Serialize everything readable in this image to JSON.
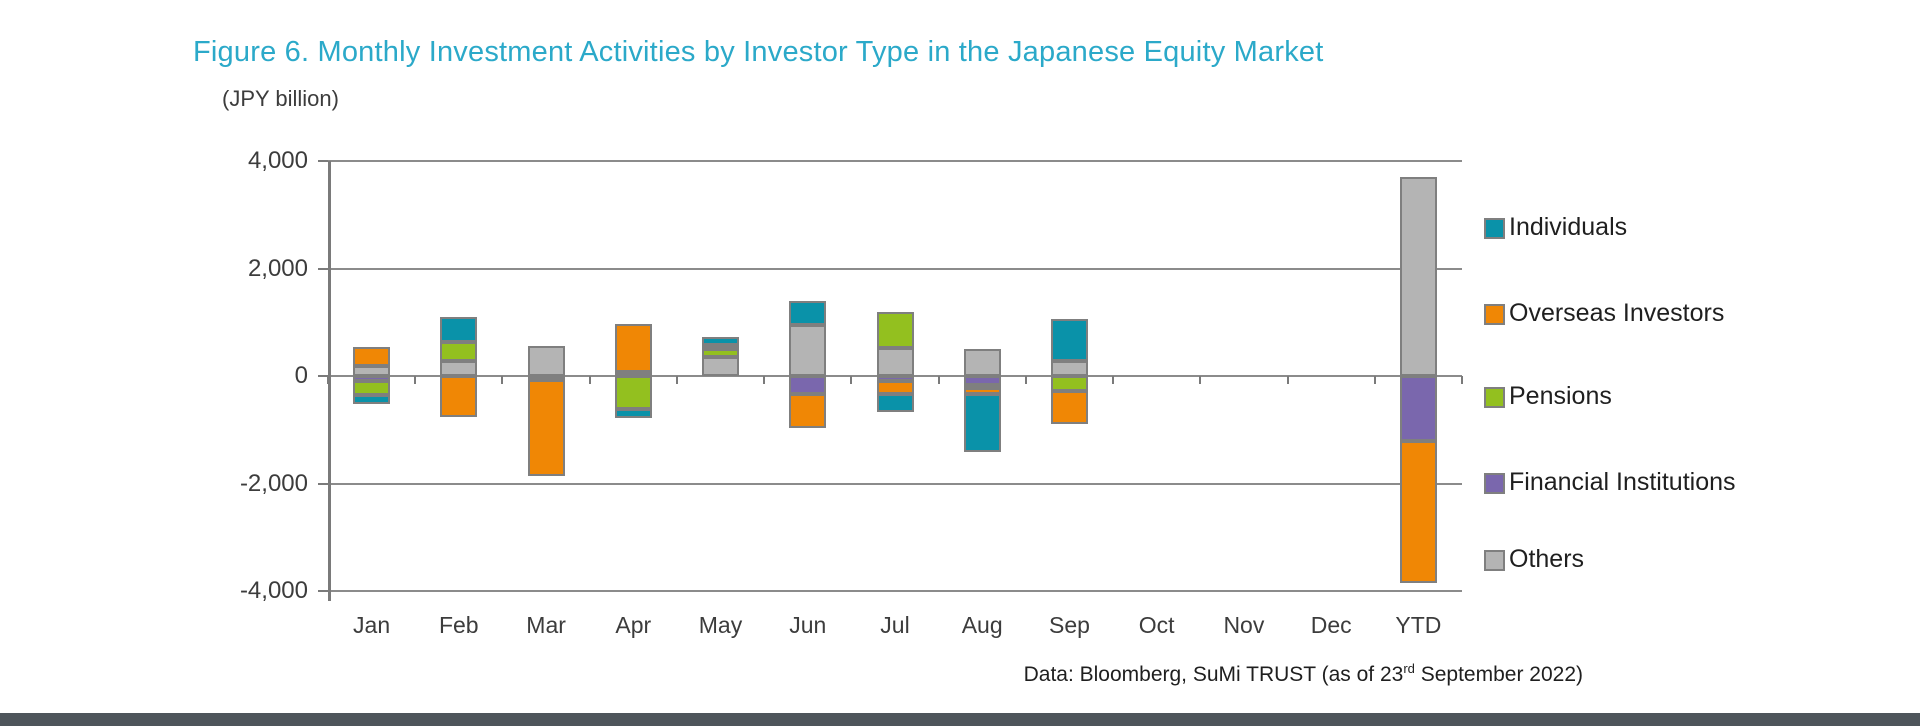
{
  "figure": {
    "title": "Figure 6. Monthly Investment Activities by Investor Type in the Japanese Equity Market",
    "unit_label": "(JPY billion)",
    "source": {
      "prefix": "Data: Bloomberg, SuMi TRUST (as of 23",
      "superscript": "rd",
      "suffix": " September 2022)"
    }
  },
  "colors": {
    "title": "#2BA9C9",
    "axis_text": "#3C3C3C",
    "legend_text": "#1F1F1F",
    "source_text": "#1F1F1F",
    "grid": "#8B8B8B",
    "axis_line": "#7A7A7A",
    "bar_border": "#7F7F7F",
    "individuals": "#0A92A9",
    "overseas_investors": "#F08705",
    "pensions": "#93C01F",
    "financial_institutions": "#7A67AD",
    "others": "#B4B4B4",
    "page_bottom_strip": "#4E555B"
  },
  "chart_data": {
    "type": "bar",
    "stacked": true,
    "unit": "JPY billion",
    "title": "Figure 6. Monthly Investment Activities by Investor Type in the Japanese Equity Market",
    "categories": [
      "Jan",
      "Feb",
      "Mar",
      "Apr",
      "May",
      "Jun",
      "Jul",
      "Aug",
      "Sep",
      "Oct",
      "Nov",
      "Dec",
      "YTD"
    ],
    "series": [
      {
        "name": "Individuals",
        "color_key": "individuals",
        "values": [
          -160,
          470,
          0,
          -160,
          140,
          440,
          -330,
          -1080,
          790,
          0,
          0,
          0,
          0
        ]
      },
      {
        "name": "Overseas Investors",
        "color_key": "overseas_investors",
        "values": [
          350,
          -760,
          -1790,
          900,
          80,
          -640,
          -250,
          -100,
          -620,
          0,
          0,
          0,
          -2650
        ]
      },
      {
        "name": "Pensions",
        "color_key": "pensions",
        "values": [
          -270,
          350,
          0,
          -620,
          150,
          0,
          670,
          -60,
          -280,
          0,
          0,
          0,
          0
        ]
      },
      {
        "name": "Financial Institutions",
        "color_key": "financial_institutions",
        "values": [
          -90,
          0,
          -70,
          0,
          0,
          -330,
          -90,
          -170,
          0,
          0,
          0,
          0,
          -1200
        ]
      },
      {
        "name": "Others",
        "color_key": "others",
        "values": [
          190,
          280,
          550,
          70,
          350,
          950,
          520,
          500,
          280,
          0,
          0,
          0,
          3700
        ]
      }
    ],
    "stack_order": [
      "Others",
      "Financial Institutions",
      "Pensions",
      "Overseas Investors",
      "Individuals"
    ],
    "ylim": [
      -4000,
      4000
    ],
    "yticks": [
      4000,
      2000,
      0,
      -2000,
      -4000
    ],
    "ytick_labels": [
      "4,000",
      "2,000",
      "0",
      "-2,000",
      "-4,000"
    ],
    "grid": true,
    "legend_position": "right"
  }
}
